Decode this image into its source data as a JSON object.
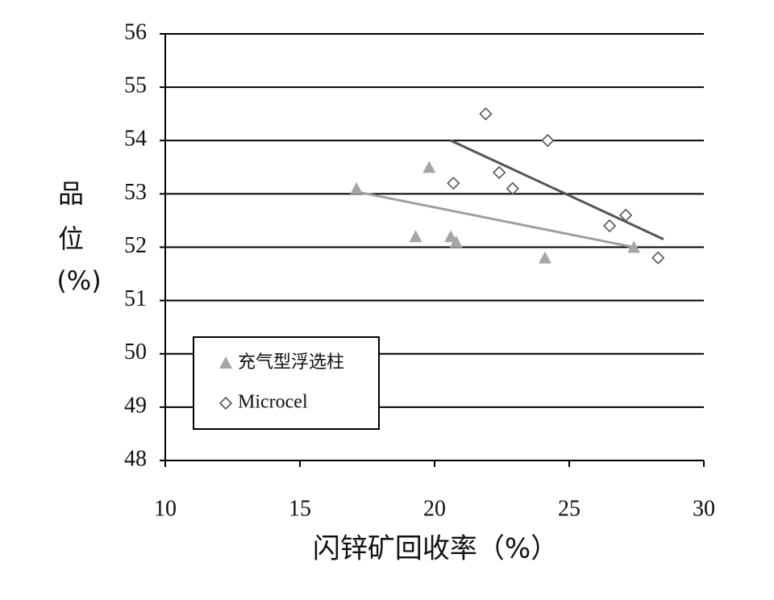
{
  "chart_data": {
    "type": "scatter",
    "xlabel": "闪锌矿回收率（%）",
    "ylabel": [
      "品",
      "位",
      "(%)"
    ],
    "xlim": [
      10,
      30
    ],
    "xticks": [
      10,
      15,
      20,
      25,
      30
    ],
    "ylim": [
      48,
      56
    ],
    "yticks": [
      48,
      49,
      50,
      51,
      52,
      53,
      54,
      55,
      56
    ],
    "grid": true,
    "legend": "lower left",
    "series": [
      {
        "name": "充气型浮选柱",
        "marker": "triangle",
        "color": "#a6a6a6",
        "x": [
          17.1,
          19.3,
          19.8,
          20.6,
          20.8,
          24.1,
          27.4
        ],
        "values": [
          53.1,
          52.2,
          53.5,
          52.2,
          52.1,
          51.8,
          52.0
        ],
        "trend": {
          "color": "#a0a0a0",
          "x": [
            17.0,
            27.4
          ],
          "values": [
            53.05,
            52.0
          ]
        }
      },
      {
        "name": "Microcel",
        "marker": "diamond",
        "color": "#555555",
        "x": [
          21.9,
          24.2,
          20.7,
          22.4,
          22.9,
          26.5,
          27.1,
          28.3
        ],
        "values": [
          54.5,
          54.0,
          53.2,
          53.4,
          53.1,
          52.4,
          52.6,
          51.8
        ],
        "trend": {
          "color": "#555555",
          "x": [
            20.6,
            28.5
          ],
          "values": [
            54.0,
            52.15
          ]
        }
      }
    ]
  }
}
